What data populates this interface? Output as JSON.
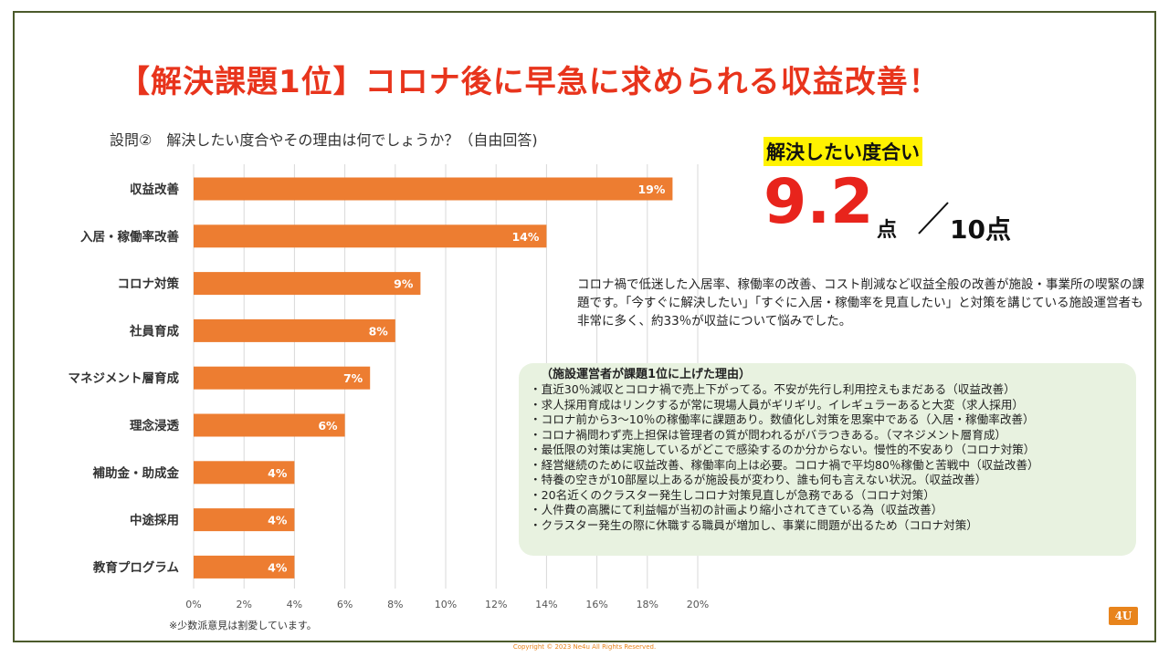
{
  "title": "【解決課題1位】コロナ後に早急に求められる収益改善！",
  "question": "設問②　解決したい度合やその理由は何でしょうか？（自由回答)",
  "chart_data": {
    "type": "bar",
    "orientation": "horizontal",
    "categories": [
      "収益改善",
      "入居・稼働率改善",
      "コロナ対策",
      "社員育成",
      "マネジメント層育成",
      "理念浸透",
      "補助金・助成金",
      "中途採用",
      "教育プログラム"
    ],
    "values": [
      19,
      14,
      9,
      8,
      7,
      6,
      4,
      4,
      4
    ],
    "value_labels": [
      "19%",
      "14%",
      "9%",
      "8%",
      "7%",
      "6%",
      "4%",
      "4%",
      "4%"
    ],
    "xlim": [
      0,
      20
    ],
    "xticks": [
      "0%",
      "2%",
      "4%",
      "6%",
      "8%",
      "10%",
      "12%",
      "14%",
      "16%",
      "18%",
      "20%"
    ],
    "grid": true,
    "bar_color": "#ed7d31"
  },
  "footnote": "※少数派意見は割愛しています。",
  "score": {
    "label": "解決したい度合い",
    "value": "9.2",
    "unit": "点",
    "max": "10点"
  },
  "summary": "コロナ禍で低迷した入居率、稼働率の改善、コスト削減など収益全般の改善が施設・事業所の喫緊の課題です。「今すぐに解決したい」「すぐに入居・稼働率を見直したい」と対策を講じている施設運営者も非常に多く、約33％が収益について悩みでした。",
  "reasons": {
    "title": "（施設運営者が課題1位に上げた理由）",
    "items": [
      "・直近30％減収とコロナ禍で売上下がってる。不安が先行し利用控えもまだある（収益改善）",
      "・求人採用育成はリンクするが常に現場人員がギリギリ。イレギュラーあると大変（求人採用）",
      "・コロナ前から3〜10％の稼働率に課題あり。数値化し対策を思案中である（入居・稼働率改善）",
      "・コロナ禍問わず売上担保は管理者の質が問われるがバラつきある。（マネジメント層育成）",
      "・最低限の対策は実施しているがどこで感染するのか分からない。慢性的不安あり（コロナ対策）",
      "・経営継続のために収益改善、稼働率向上は必要。コロナ禍で平均80％稼働と苦戦中（収益改善）",
      "・特養の空きが10部屋以上あるが施設長が変わり、誰も何も言えない状況。（収益改善）",
      "・20名近くのクラスター発生しコロナ対策見直しが急務である（コロナ対策）",
      "・人件費の高騰にて利益幅が当初の計画より縮小されてきている為（収益改善）",
      "・クラスター発生の際に休職する職員が増加し、事業に問題が出るため（コロナ対策）"
    ]
  },
  "badge": "4U",
  "copyright": "Copyright © 2023 Ne4u All Rights Reserved."
}
